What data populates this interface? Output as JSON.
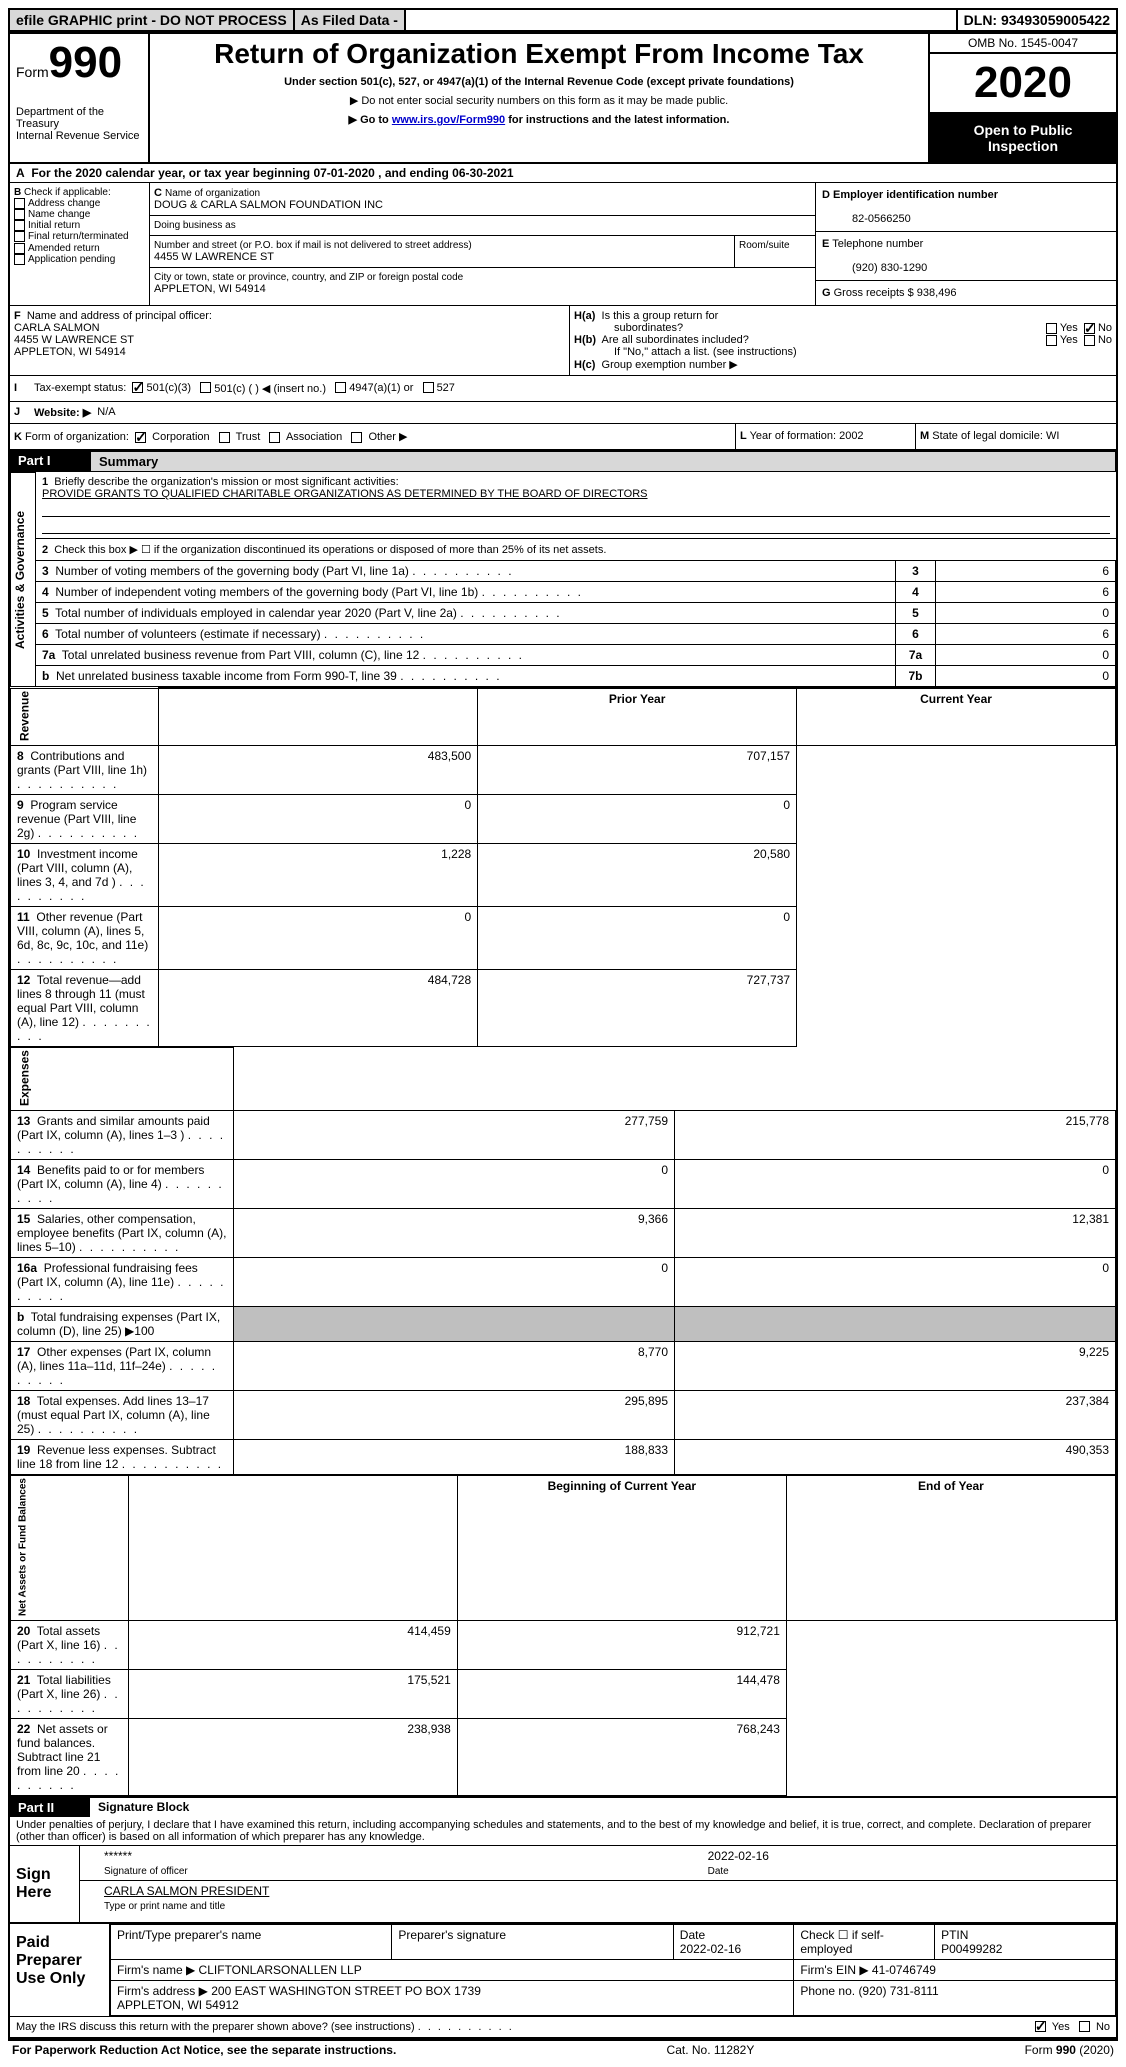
{
  "topbar": {
    "efile": "efile GRAPHIC print - DO NOT PROCESS",
    "asFiled": "As Filed Data -",
    "dlnLabel": "DLN:",
    "dln": "93493059005422"
  },
  "header": {
    "formWord": "Form",
    "formNum": "990",
    "dept": "Department of the Treasury",
    "irs": "Internal Revenue Service",
    "title": "Return of Organization Exempt From Income Tax",
    "subtitle": "Under section 501(c), 527, or 4947(a)(1) of the Internal Revenue Code (except private foundations)",
    "note1": "▶ Do not enter social security numbers on this form as it may be made public.",
    "note2_pre": "▶ Go to ",
    "note2_link": "www.irs.gov/Form990",
    "note2_post": " for instructions and the latest information.",
    "omb": "OMB No. 1545-0047",
    "year": "2020",
    "openPublic1": "Open to Public",
    "openPublic2": "Inspection"
  },
  "lineA": {
    "label": "A",
    "text": "For the 2020 calendar year, or tax year beginning 07-01-2020   , and ending 06-30-2021"
  },
  "boxB": {
    "label": "B",
    "lead": "Check if applicable:",
    "items": [
      "Address change",
      "Name change",
      "Initial return",
      "Final return/terminated",
      "Amended return",
      "Application pending"
    ]
  },
  "boxC": {
    "label": "C",
    "nameLabel": "Name of organization",
    "name": "DOUG & CARLA SALMON FOUNDATION INC",
    "dbaLabel": "Doing business as",
    "streetLabel": "Number and street (or P.O. box if mail is not delivered to street address)",
    "street": "4455 W LAWRENCE ST",
    "roomLabel": "Room/suite",
    "cityLabel": "City or town, state or province, country, and ZIP or foreign postal code",
    "city": "APPLETON, WI  54914"
  },
  "boxD": {
    "label": "D",
    "text": "Employer identification number",
    "value": "82-0566250"
  },
  "boxE": {
    "label": "E",
    "text": "Telephone number",
    "value": "(920) 830-1290"
  },
  "boxG": {
    "label": "G",
    "text": "Gross receipts $",
    "value": "938,496"
  },
  "boxF": {
    "label": "F",
    "lead": "Name and address of principal officer:",
    "name": "CARLA SALMON",
    "street": "4455 W LAWRENCE ST",
    "city": "APPLETON, WI  54914"
  },
  "boxH": {
    "ha": {
      "label": "H(a)",
      "text": "Is this a group return for",
      "text2": "subordinates?",
      "yes": "Yes",
      "no": "No"
    },
    "hb": {
      "label": "H(b)",
      "text": "Are all subordinates included?",
      "yes": "Yes",
      "no": "No",
      "note": "If \"No,\" attach a list. (see instructions)"
    },
    "hc": {
      "label": "H(c)",
      "text": "Group exemption number ▶"
    }
  },
  "lineI": {
    "label": "I",
    "text": "Tax-exempt status:",
    "opts": [
      "501(c)(3)",
      "501(c) (  ) ◀ (insert no.)",
      "4947(a)(1) or",
      "527"
    ]
  },
  "lineJ": {
    "label": "J",
    "text": "Website: ▶",
    "value": "N/A"
  },
  "lineK": {
    "label": "K",
    "text": "Form of organization:",
    "opts": [
      "Corporation",
      "Trust",
      "Association",
      "Other ▶"
    ]
  },
  "lineL": {
    "label": "L",
    "text": "Year of formation:",
    "value": "2002"
  },
  "lineM": {
    "label": "M",
    "text": "State of legal domicile:",
    "value": "WI"
  },
  "part1": {
    "partLabel": "Part I",
    "title": "Summary",
    "sections": {
      "actgov": "Activities & Governance",
      "rev": "Revenue",
      "exp": "Expenses",
      "net": "Net Assets or Fund Balances"
    },
    "l1": {
      "n": "1",
      "t": "Briefly describe the organization's mission or most significant activities:",
      "mission": "PROVIDE GRANTS TO QUALIFIED CHARITABLE ORGANIZATIONS AS DETERMINED BY THE BOARD OF DIRECTORS"
    },
    "l2": {
      "n": "2",
      "t": "Check this box ▶ ☐ if the organization discontinued its operations or disposed of more than 25% of its net assets."
    },
    "rows_single": [
      {
        "n": "3",
        "t": "Number of voting members of the governing body (Part VI, line 1a)",
        "box": "3",
        "v": "6"
      },
      {
        "n": "4",
        "t": "Number of independent voting members of the governing body (Part VI, line 1b)",
        "box": "4",
        "v": "6"
      },
      {
        "n": "5",
        "t": "Total number of individuals employed in calendar year 2020 (Part V, line 2a)",
        "box": "5",
        "v": "0"
      },
      {
        "n": "6",
        "t": "Total number of volunteers (estimate if necessary)",
        "box": "6",
        "v": "6"
      },
      {
        "n": "7a",
        "t": "Total unrelated business revenue from Part VIII, column (C), line 12",
        "box": "7a",
        "v": "0"
      },
      {
        "n": "b",
        "t": "Net unrelated business taxable income from Form 990-T, line 39",
        "box": "7b",
        "v": "0"
      }
    ],
    "colHead1": "Prior Year",
    "colHead2": "Current Year",
    "rev_rows": [
      {
        "n": "8",
        "t": "Contributions and grants (Part VIII, line 1h)",
        "py": "483,500",
        "cy": "707,157"
      },
      {
        "n": "9",
        "t": "Program service revenue (Part VIII, line 2g)",
        "py": "0",
        "cy": "0"
      },
      {
        "n": "10",
        "t": "Investment income (Part VIII, column (A), lines 3, 4, and 7d )",
        "py": "1,228",
        "cy": "20,580"
      },
      {
        "n": "11",
        "t": "Other revenue (Part VIII, column (A), lines 5, 6d, 8c, 9c, 10c, and 11e)",
        "py": "0",
        "cy": "0"
      },
      {
        "n": "12",
        "t": "Total revenue—add lines 8 through 11 (must equal Part VIII, column (A), line 12)",
        "py": "484,728",
        "cy": "727,737"
      }
    ],
    "exp_rows": [
      {
        "n": "13",
        "t": "Grants and similar amounts paid (Part IX, column (A), lines 1–3 )",
        "py": "277,759",
        "cy": "215,778"
      },
      {
        "n": "14",
        "t": "Benefits paid to or for members (Part IX, column (A), line 4)",
        "py": "0",
        "cy": "0"
      },
      {
        "n": "15",
        "t": "Salaries, other compensation, employee benefits (Part IX, column (A), lines 5–10)",
        "py": "9,366",
        "cy": "12,381"
      },
      {
        "n": "16a",
        "t": "Professional fundraising fees (Part IX, column (A), line 11e)",
        "py": "0",
        "cy": "0"
      },
      {
        "n": "b",
        "t": "Total fundraising expenses (Part IX, column (D), line 25) ▶100",
        "py": "",
        "cy": ""
      },
      {
        "n": "17",
        "t": "Other expenses (Part IX, column (A), lines 11a–11d, 11f–24e)",
        "py": "8,770",
        "cy": "9,225"
      },
      {
        "n": "18",
        "t": "Total expenses. Add lines 13–17 (must equal Part IX, column (A), line 25)",
        "py": "295,895",
        "cy": "237,384"
      },
      {
        "n": "19",
        "t": "Revenue less expenses. Subtract line 18 from line 12",
        "py": "188,833",
        "cy": "490,353"
      }
    ],
    "colHead3": "Beginning of Current Year",
    "colHead4": "End of Year",
    "net_rows": [
      {
        "n": "20",
        "t": "Total assets (Part X, line 16)",
        "py": "414,459",
        "cy": "912,721"
      },
      {
        "n": "21",
        "t": "Total liabilities (Part X, line 26)",
        "py": "175,521",
        "cy": "144,478"
      },
      {
        "n": "22",
        "t": "Net assets or fund balances. Subtract line 21 from line 20",
        "py": "238,938",
        "cy": "768,243"
      }
    ]
  },
  "part2": {
    "partLabel": "Part II",
    "title": "Signature Block",
    "perjury": "Under penalties of perjury, I declare that I have examined this return, including accompanying schedules and statements, and to the best of my knowledge and belief, it is true, correct, and complete. Declaration of preparer (other than officer) is based on all information of which preparer has any knowledge.",
    "signHere": "Sign Here",
    "sigStars": "******",
    "sigDate": "2022-02-16",
    "sigOfOfficer": "Signature of officer",
    "dateLabel": "Date",
    "officerName": "CARLA SALMON PRESIDENT",
    "typeName": "Type or print name and title",
    "paid": "Paid Preparer Use Only",
    "prep": {
      "nameLabel": "Print/Type preparer's name",
      "sigLabel": "Preparer's signature",
      "dateLabel": "Date",
      "date": "2022-02-16",
      "checkLabel": "Check ☐ if self-employed",
      "ptinLabel": "PTIN",
      "ptin": "P00499282",
      "firmNameLabel": "Firm's name   ▶",
      "firmName": "CLIFTONLARSONALLEN LLP",
      "firmEinLabel": "Firm's EIN ▶",
      "firmEin": "41-0746749",
      "firmAddrLabel": "Firm's address ▶",
      "firmAddr": "200 EAST WASHINGTON STREET PO BOX 1739\nAPPLETON, WI  54912",
      "phoneLabel": "Phone no.",
      "phone": "(920) 731-8111"
    },
    "mayIRS": "May the IRS discuss this return with the preparer shown above? (see instructions)",
    "yes": "Yes",
    "no": "No"
  },
  "footer": {
    "left": "For Paperwork Reduction Act Notice, see the separate instructions.",
    "mid": "Cat. No. 11282Y",
    "right": "Form 990 (2020)"
  },
  "colors": {
    "gray": "#d8d8d8",
    "darkgray": "#bfbfbf",
    "link": "#0000cc"
  }
}
